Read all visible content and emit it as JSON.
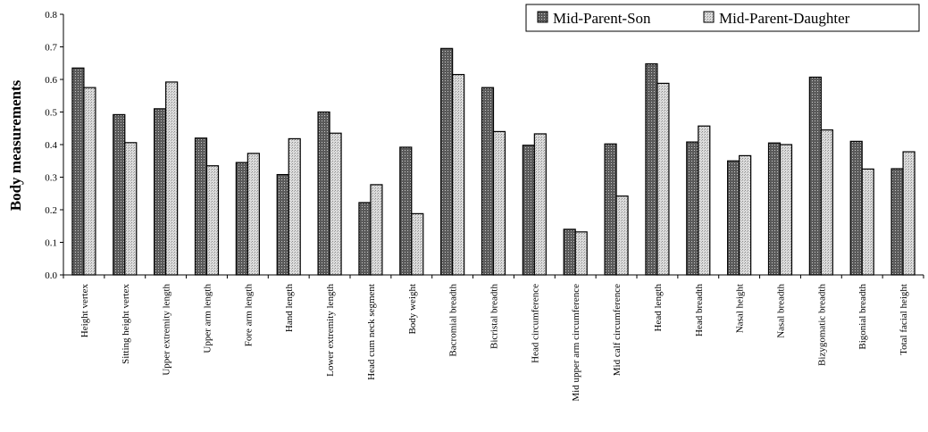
{
  "chart_data": {
    "type": "bar",
    "title": "",
    "xlabel": "",
    "ylabel": "Body measurements",
    "ylim": [
      0,
      0.8
    ],
    "yticks": [
      "0.0",
      "0.1",
      "0.2",
      "0.3",
      "0.4",
      "0.5",
      "0.6",
      "0.7",
      "0.8"
    ],
    "grid": false,
    "legend_position": "top-right",
    "categories": [
      "Height vertex",
      "Sitting height vertex",
      "Upper extremity length",
      "Upper arm length",
      "Fore arm length",
      "Hand length",
      "Lower extremity length",
      "Head cum neck segment",
      "Body weight",
      "Bacromial breadth",
      "Bicristal breadth",
      "Head circumference",
      "Mid upper arm circumference",
      "Mid calf circumference",
      "Head length",
      "Head breadth",
      "Nasal height",
      "Nasal breadth",
      "Bizygomatic breadth",
      "Bigonial breadth",
      "Total facial height"
    ],
    "series": [
      {
        "name": "Mid-Parent-Son",
        "pattern": "dark-dotted",
        "values": [
          0.635,
          0.492,
          0.51,
          0.42,
          0.345,
          0.308,
          0.5,
          0.222,
          0.392,
          0.695,
          0.575,
          0.398,
          0.14,
          0.402,
          0.648,
          0.408,
          0.35,
          0.405,
          0.607,
          0.41,
          0.326
        ]
      },
      {
        "name": "Mid-Parent-Daughter",
        "pattern": "light-dotted",
        "values": [
          0.575,
          0.406,
          0.592,
          0.335,
          0.373,
          0.418,
          0.435,
          0.277,
          0.188,
          0.615,
          0.44,
          0.433,
          0.132,
          0.242,
          0.588,
          0.457,
          0.366,
          0.4,
          0.445,
          0.325,
          0.378
        ]
      }
    ]
  }
}
